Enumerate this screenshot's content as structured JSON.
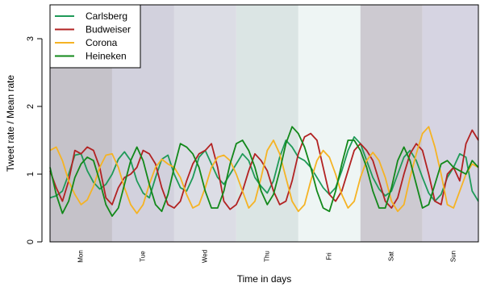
{
  "chart_data": {
    "type": "line",
    "title": "",
    "xlabel": "Time in days",
    "ylabel": "Tweet rate / Mean rate",
    "ylim": [
      0,
      3.5
    ],
    "yticks": [
      "0",
      "1",
      "2",
      "3"
    ],
    "days": [
      "Mon",
      "Tue",
      "Wed",
      "Thu",
      "Fri",
      "Sat",
      "Sun"
    ],
    "day_band_colors": [
      "#c5c2c9",
      "#d2d1dd",
      "#dcdde5",
      "#dbe5e4",
      "#eef5f4",
      "#cdcad1",
      "#d6d4e2"
    ],
    "legend_position": "top-left",
    "series": [
      {
        "name": "Carlsberg",
        "color": "#1f9a58",
        "x": [
          0.0,
          0.1,
          0.2,
          0.3,
          0.4,
          0.5,
          0.6,
          0.7,
          0.8,
          0.9,
          1.0,
          1.1,
          1.2,
          1.3,
          1.4,
          1.5,
          1.6,
          1.7,
          1.8,
          1.9,
          2.0,
          2.1,
          2.2,
          2.3,
          2.4,
          2.5,
          2.6,
          2.7,
          2.8,
          2.9,
          3.0,
          3.1,
          3.2,
          3.3,
          3.4,
          3.5,
          3.6,
          3.7,
          3.8,
          3.9,
          4.0,
          4.1,
          4.2,
          4.3,
          4.4,
          4.5,
          4.6,
          4.7,
          4.8,
          4.9,
          5.0,
          5.1,
          5.2,
          5.3,
          5.4,
          5.5,
          5.6,
          5.7,
          5.8,
          5.9,
          6.0,
          6.1,
          6.2,
          6.3,
          6.4,
          6.5,
          6.6,
          6.7,
          6.8,
          6.9
        ],
        "values": [
          0.65,
          0.68,
          0.75,
          1.0,
          1.28,
          1.3,
          1.05,
          0.88,
          0.78,
          0.85,
          1.0,
          1.22,
          1.33,
          1.2,
          0.9,
          0.72,
          0.65,
          0.95,
          1.22,
          1.28,
          1.0,
          0.8,
          0.75,
          0.95,
          1.25,
          1.35,
          1.15,
          0.95,
          0.85,
          1.0,
          1.15,
          1.3,
          1.2,
          0.95,
          0.82,
          0.72,
          0.9,
          1.25,
          1.5,
          1.4,
          1.25,
          1.2,
          1.1,
          0.95,
          0.8,
          0.7,
          0.8,
          1.05,
          1.35,
          1.55,
          1.45,
          1.2,
          0.95,
          0.78,
          0.68,
          0.75,
          1.0,
          1.25,
          1.35,
          1.2,
          0.95,
          0.72,
          0.6,
          0.7,
          0.95,
          1.1,
          1.3,
          1.25,
          0.75,
          0.6
        ]
      },
      {
        "name": "Budweiser",
        "color": "#b22222",
        "x": [
          0.0,
          0.1,
          0.2,
          0.3,
          0.4,
          0.5,
          0.6,
          0.7,
          0.8,
          0.9,
          1.0,
          1.1,
          1.2,
          1.3,
          1.4,
          1.5,
          1.6,
          1.7,
          1.8,
          1.9,
          2.0,
          2.1,
          2.2,
          2.3,
          2.4,
          2.5,
          2.6,
          2.7,
          2.8,
          2.9,
          3.0,
          3.1,
          3.2,
          3.3,
          3.4,
          3.5,
          3.6,
          3.7,
          3.8,
          3.9,
          4.0,
          4.1,
          4.2,
          4.3,
          4.4,
          4.5,
          4.6,
          4.7,
          4.8,
          4.9,
          5.0,
          5.1,
          5.2,
          5.3,
          5.4,
          5.5,
          5.6,
          5.7,
          5.8,
          5.9,
          6.0,
          6.1,
          6.2,
          6.3,
          6.4,
          6.5,
          6.6,
          6.7,
          6.8,
          6.9
        ],
        "values": [
          1.05,
          0.8,
          0.6,
          0.9,
          1.35,
          1.3,
          1.4,
          1.35,
          1.1,
          0.65,
          0.55,
          0.8,
          0.95,
          1.0,
          1.1,
          1.35,
          1.3,
          1.15,
          0.8,
          0.55,
          0.5,
          0.6,
          0.9,
          1.15,
          1.3,
          1.35,
          1.45,
          1.1,
          0.6,
          0.48,
          0.55,
          0.75,
          1.05,
          1.3,
          1.2,
          1.05,
          0.75,
          0.55,
          0.6,
          0.9,
          1.3,
          1.55,
          1.6,
          1.5,
          1.1,
          0.7,
          0.6,
          0.75,
          1.05,
          1.35,
          1.45,
          1.35,
          1.2,
          0.9,
          0.6,
          0.5,
          0.65,
          1.0,
          1.3,
          1.45,
          1.35,
          1.0,
          0.6,
          0.55,
          1.0,
          1.1,
          0.9,
          1.45,
          1.65,
          1.5
        ]
      },
      {
        "name": "Corona",
        "color": "#f5b324",
        "x": [
          0.0,
          0.1,
          0.2,
          0.3,
          0.4,
          0.5,
          0.6,
          0.7,
          0.8,
          0.9,
          1.0,
          1.1,
          1.2,
          1.3,
          1.4,
          1.5,
          1.6,
          1.7,
          1.8,
          1.9,
          2.0,
          2.1,
          2.2,
          2.3,
          2.4,
          2.5,
          2.6,
          2.7,
          2.8,
          2.9,
          3.0,
          3.1,
          3.2,
          3.3,
          3.4,
          3.5,
          3.6,
          3.7,
          3.8,
          3.9,
          4.0,
          4.1,
          4.2,
          4.3,
          4.4,
          4.5,
          4.6,
          4.7,
          4.8,
          4.9,
          5.0,
          5.1,
          5.2,
          5.3,
          5.4,
          5.5,
          5.6,
          5.7,
          5.8,
          5.9,
          6.0,
          6.1,
          6.2,
          6.3,
          6.4,
          6.5,
          6.6,
          6.7,
          6.8,
          6.9
        ],
        "values": [
          1.35,
          1.4,
          1.2,
          0.9,
          0.7,
          0.55,
          0.62,
          0.82,
          1.1,
          1.28,
          1.3,
          1.1,
          0.8,
          0.55,
          0.42,
          0.55,
          0.85,
          1.1,
          1.22,
          1.15,
          1.1,
          0.95,
          0.7,
          0.5,
          0.55,
          0.8,
          1.1,
          1.25,
          1.28,
          1.2,
          1.0,
          0.75,
          0.5,
          0.6,
          0.95,
          1.35,
          1.5,
          1.3,
          0.95,
          0.6,
          0.45,
          0.55,
          0.9,
          1.2,
          1.35,
          1.25,
          1.0,
          0.7,
          0.5,
          0.6,
          0.95,
          1.2,
          1.32,
          1.2,
          0.95,
          0.6,
          0.45,
          0.55,
          0.95,
          1.3,
          1.6,
          1.7,
          1.4,
          1.0,
          0.55,
          0.5,
          0.75,
          1.0,
          1.15,
          1.1
        ]
      },
      {
        "name": "Heineken",
        "color": "#12881a",
        "x": [
          0.0,
          0.1,
          0.2,
          0.3,
          0.4,
          0.5,
          0.6,
          0.7,
          0.8,
          0.9,
          1.0,
          1.1,
          1.2,
          1.3,
          1.4,
          1.5,
          1.6,
          1.7,
          1.8,
          1.9,
          2.0,
          2.1,
          2.2,
          2.3,
          2.4,
          2.5,
          2.6,
          2.7,
          2.8,
          2.9,
          3.0,
          3.1,
          3.2,
          3.3,
          3.4,
          3.5,
          3.6,
          3.7,
          3.8,
          3.9,
          4.0,
          4.1,
          4.2,
          4.3,
          4.4,
          4.5,
          4.6,
          4.7,
          4.8,
          4.9,
          5.0,
          5.1,
          5.2,
          5.3,
          5.4,
          5.5,
          5.6,
          5.7,
          5.8,
          5.9,
          6.0,
          6.1,
          6.2,
          6.3,
          6.4,
          6.5,
          6.6,
          6.7,
          6.8,
          6.9
        ],
        "values": [
          1.1,
          0.7,
          0.42,
          0.6,
          0.95,
          1.15,
          1.25,
          1.2,
          0.9,
          0.55,
          0.38,
          0.5,
          0.85,
          1.2,
          1.4,
          1.2,
          0.85,
          0.55,
          0.45,
          0.7,
          1.1,
          1.45,
          1.4,
          1.3,
          1.1,
          0.75,
          0.5,
          0.5,
          0.75,
          1.15,
          1.45,
          1.5,
          1.35,
          1.1,
          0.75,
          0.55,
          0.7,
          1.05,
          1.45,
          1.7,
          1.6,
          1.4,
          1.1,
          0.75,
          0.5,
          0.45,
          0.75,
          1.15,
          1.5,
          1.5,
          1.35,
          1.1,
          0.75,
          0.5,
          0.5,
          0.8,
          1.2,
          1.4,
          1.2,
          0.85,
          0.5,
          0.55,
          0.85,
          1.15,
          1.2,
          1.1,
          1.05,
          1.0,
          1.2,
          1.1
        ]
      }
    ]
  }
}
